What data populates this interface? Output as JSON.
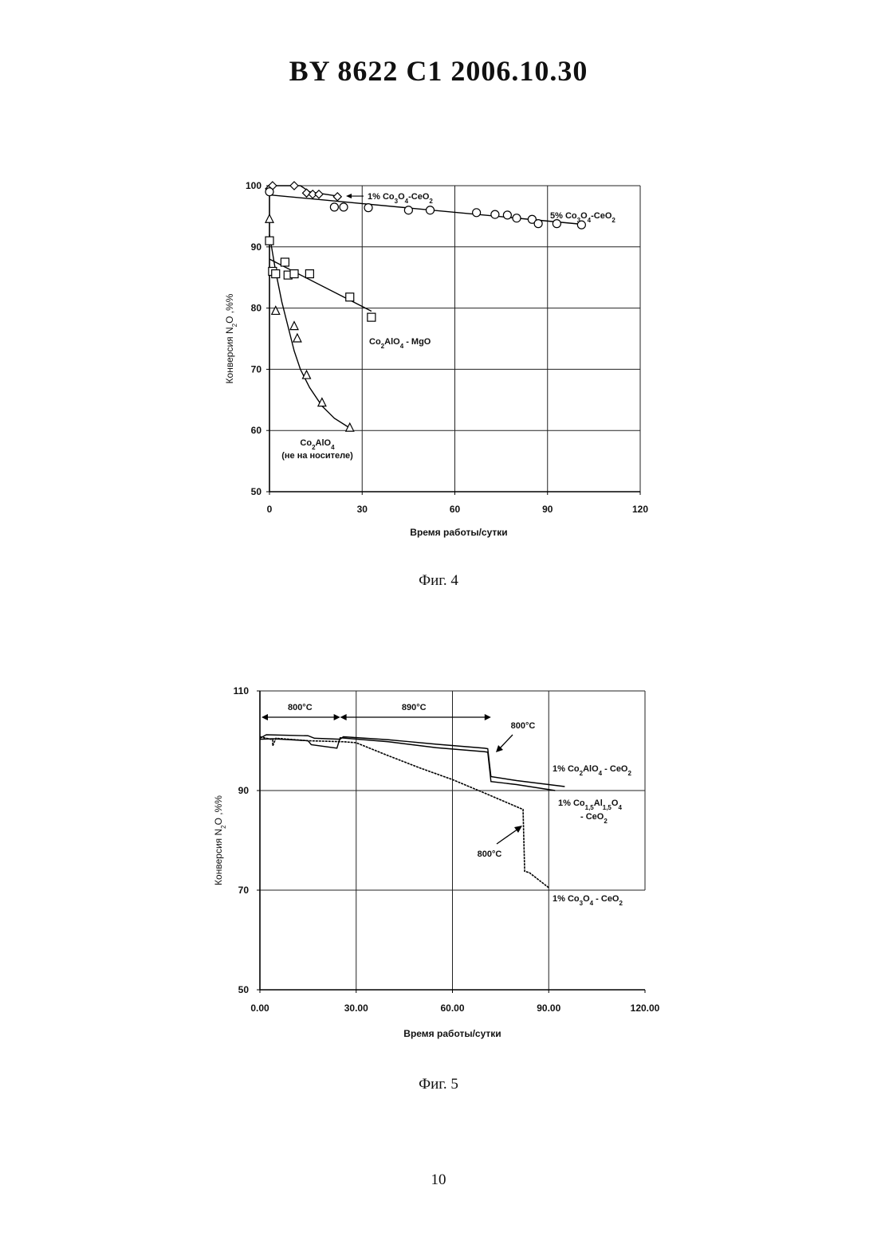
{
  "page": {
    "header": "BY 8622 C1 2006.10.30",
    "fig4_caption": "Фиг. 4",
    "fig5_caption": "Фиг. 5",
    "page_number": "10"
  },
  "chart_data": [
    {
      "type": "scatter",
      "xlabel": "Время работы/сутки",
      "ylabel": "Конверсия N2O ,%%",
      "xlim": [
        0,
        120
      ],
      "ylim": [
        50,
        100
      ],
      "xticks": [
        "0",
        "30",
        "60",
        "90",
        "120"
      ],
      "yticks": [
        "50",
        "60",
        "70",
        "80",
        "90",
        "100"
      ],
      "grid": true,
      "series": [
        {
          "name": "1% Co3O4-CeO2",
          "marker": "diamond",
          "points": [
            [
              0,
              99.5
            ],
            [
              1,
              100
            ],
            [
              8,
              100
            ],
            [
              12,
              98.8
            ],
            [
              14,
              98.6
            ],
            [
              16,
              98.6
            ],
            [
              22,
              98.2
            ]
          ],
          "trend": [
            [
              0,
              100
            ],
            [
              10,
              100
            ],
            [
              13,
              99
            ],
            [
              22,
              98.3
            ]
          ]
        },
        {
          "name": "5% Co3O4-CeO2",
          "marker": "circle",
          "points": [
            [
              0,
              99
            ],
            [
              21,
              96.5
            ],
            [
              24,
              96.5
            ],
            [
              32,
              96.4
            ],
            [
              45,
              96
            ],
            [
              52,
              96
            ],
            [
              67,
              95.6
            ],
            [
              73,
              95.3
            ],
            [
              77,
              95.2
            ],
            [
              80,
              94.7
            ],
            [
              85,
              94.5
            ],
            [
              87,
              93.8
            ],
            [
              93,
              93.8
            ],
            [
              101,
              93.6
            ]
          ],
          "trend": [
            [
              0,
              98.5
            ],
            [
              101,
              93.7
            ]
          ]
        },
        {
          "name": "Co2AlO4 - MgO",
          "marker": "square",
          "points": [
            [
              0,
              91
            ],
            [
              1,
              86
            ],
            [
              2,
              85.6
            ],
            [
              5,
              87.5
            ],
            [
              6,
              85.4
            ],
            [
              8,
              85.6
            ],
            [
              13,
              85.6
            ],
            [
              26,
              81.8
            ],
            [
              33,
              78.5
            ]
          ],
          "trend": [
            [
              0,
              88
            ],
            [
              33,
              79.5
            ]
          ]
        },
        {
          "name": "Co2AlO4 (не на носителе)",
          "marker": "triangle",
          "points": [
            [
              0,
              94.5
            ],
            [
              2,
              79.5
            ],
            [
              8,
              77
            ],
            [
              9,
              75
            ],
            [
              12,
              69
            ],
            [
              17,
              64.5
            ],
            [
              26,
              60.4
            ]
          ],
          "trend": [
            [
              0,
              92
            ],
            [
              2,
              86
            ],
            [
              4,
              81
            ],
            [
              6,
              77
            ],
            [
              8,
              73
            ],
            [
              10,
              70
            ],
            [
              13,
              67
            ],
            [
              17,
              64
            ],
            [
              21,
              62
            ],
            [
              26,
              60.4
            ]
          ]
        }
      ],
      "annotations": {
        "co3o4_1": "1% Co3O4-CeO2",
        "co3o4_5": "5% Co3O4-CeO2",
        "mgo_label": "Co2AlO4 - MgO",
        "unsupported_1": "Co2AlO4",
        "unsupported_2": "(не на носителе)"
      }
    },
    {
      "type": "line",
      "xlabel": "Время работы/сутки",
      "ylabel": "Конверсия N2O ,%%",
      "xlim": [
        0,
        120
      ],
      "ylim": [
        50,
        110
      ],
      "xticks": [
        "0.00",
        "30.00",
        "60.00",
        "90.00",
        "120.00"
      ],
      "yticks": [
        "50",
        "70",
        "90",
        "110"
      ],
      "grid": true,
      "series": [
        {
          "name": "1% Co2AlO4 - CeO2",
          "points": [
            [
              0,
              100.5
            ],
            [
              2,
              101.2
            ],
            [
              15,
              101
            ],
            [
              17,
              100.5
            ],
            [
              25,
              100.3
            ],
            [
              26,
              100.8
            ],
            [
              40,
              100.2
            ],
            [
              55,
              99.3
            ],
            [
              70,
              98.5
            ],
            [
              71,
              98.4
            ],
            [
              72,
              92.8
            ],
            [
              80,
              92
            ],
            [
              90,
              91.2
            ],
            [
              95,
              90.8
            ]
          ]
        },
        {
          "name": "1% Co1,5Al1,5O4 - CeO2",
          "points": [
            [
              0,
              100.3
            ],
            [
              4,
              100.4
            ],
            [
              15,
              100
            ],
            [
              16,
              99.2
            ],
            [
              24,
              98.5
            ],
            [
              25,
              100.6
            ],
            [
              40,
              99.8
            ],
            [
              55,
              98.6
            ],
            [
              70,
              97.8
            ],
            [
              71,
              97.7
            ],
            [
              72,
              91.8
            ],
            [
              80,
              91.2
            ],
            [
              92,
              90
            ]
          ]
        },
        {
          "name": "1% Co3O4 - CeO2",
          "points": [
            [
              0,
              100.8
            ],
            [
              4,
              100.2
            ],
            [
              4,
              99
            ],
            [
              5,
              100.5
            ],
            [
              15,
              100
            ],
            [
              26,
              99.8
            ],
            [
              30,
              99.6
            ],
            [
              40,
              97
            ],
            [
              50,
              94.5
            ],
            [
              60,
              92.2
            ],
            [
              70,
              89.5
            ],
            [
              82,
              86.2
            ],
            [
              82.5,
              73.8
            ],
            [
              84,
              73.5
            ],
            [
              90,
              70.5
            ]
          ]
        }
      ],
      "annotations": {
        "temp_800_a": "800°C",
        "temp_890": "890°C",
        "temp_800_b": "800°C",
        "temp_800_c": "800°C",
        "label_co2alo4": "1% Co2AlO4 - CeO2",
        "label_co15_1": "1% Co1,5Al1,5O4",
        "label_co15_2": "- CeO2",
        "label_co3o4": "1% Co3O4 - CeO2"
      }
    }
  ]
}
